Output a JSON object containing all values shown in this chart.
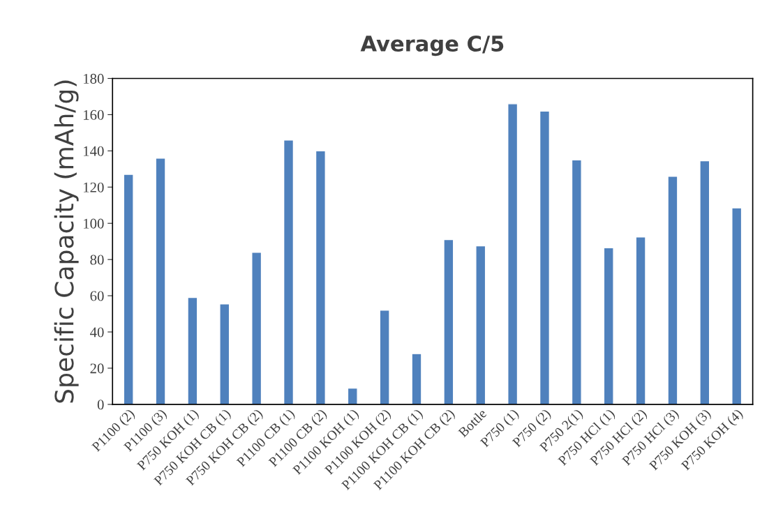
{
  "chart_data": {
    "type": "bar",
    "title": "Average C/5",
    "ylabel": "Specific Capacity (mAh/g)",
    "categories": [
      "P1100 (2)",
      "P1100 (3)",
      "P750 KOH (1)",
      "P750 KOH CB (1)",
      "P750 KOH CB (2)",
      "P1100 CB (1)",
      "P1100 CB (2)",
      "P1100 KOH (1)",
      "P1100 KOH (2)",
      "P1100 KOH CB (1)",
      "P1100 KOH CB (2)",
      "Bottle",
      "P750 (1)",
      "P750 (2)",
      "P750 2(1)",
      "P750 HCl (1)",
      "P750 HCl (2)",
      "P750 HCl (3)",
      "P750 KOH (3)",
      "P750 KOH (4)"
    ],
    "values": [
      127,
      136,
      59,
      55.5,
      84,
      146,
      140,
      9,
      52,
      28,
      91,
      87.5,
      166,
      162,
      135,
      86.5,
      92.5,
      126,
      134.5,
      108.5
    ],
    "color": "#4f81bd",
    "ylim": [
      0,
      180
    ],
    "yticks": [
      0,
      20,
      40,
      60,
      80,
      100,
      120,
      140,
      160,
      180
    ],
    "grid": false,
    "legend": false
  }
}
